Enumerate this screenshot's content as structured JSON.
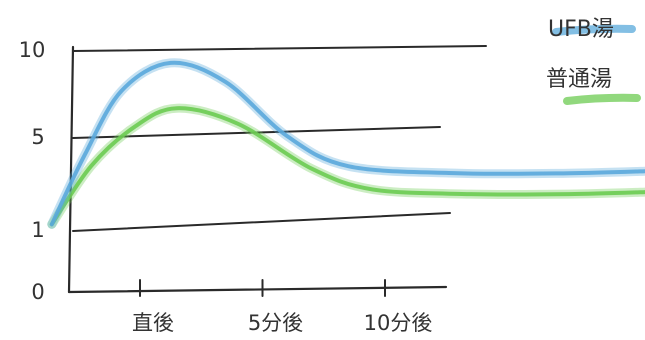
{
  "chart_data": {
    "type": "line",
    "title": "",
    "xlabel": "",
    "ylabel": "",
    "x_ticks": [
      "直後",
      "5分後",
      "10分後"
    ],
    "y_ticks": [
      "10",
      "5",
      "1",
      "0"
    ],
    "grid": true,
    "legend_position": "top-right",
    "series": [
      {
        "name": "UFB湯",
        "color": "#5aa9db",
        "points": [
          [
            -0.72,
            1.2
          ],
          [
            -0.45,
            4.2
          ],
          [
            -0.15,
            7.6
          ],
          [
            0.25,
            9.2
          ],
          [
            0.7,
            8.1
          ],
          [
            1.2,
            5.0
          ],
          [
            1.7,
            3.7
          ],
          [
            2.6,
            3.4
          ],
          [
            3.5,
            3.4
          ],
          [
            4.2,
            3.5
          ]
        ]
      },
      {
        "name": "普通湯",
        "color": "#6ccb52",
        "points": [
          [
            -0.72,
            1.2
          ],
          [
            -0.4,
            3.7
          ],
          [
            -0.05,
            5.5
          ],
          [
            0.3,
            6.6
          ],
          [
            0.8,
            5.7
          ],
          [
            1.4,
            3.6
          ],
          [
            1.9,
            2.7
          ],
          [
            2.7,
            2.5
          ],
          [
            3.5,
            2.5
          ],
          [
            4.2,
            2.6
          ]
        ]
      }
    ],
    "legend_entries": [
      "UFB湯",
      "普通湯"
    ]
  }
}
